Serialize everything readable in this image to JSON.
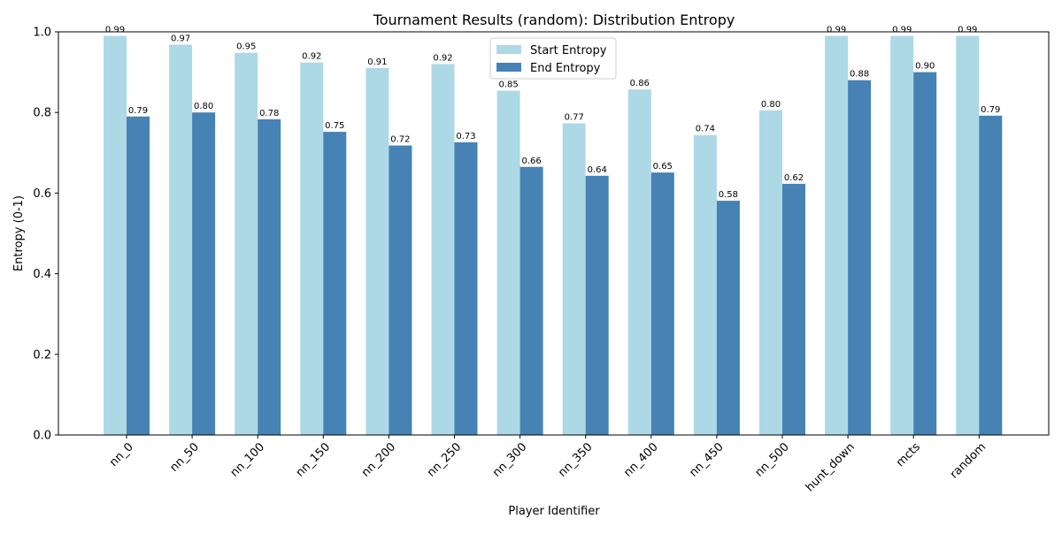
{
  "chart_data": {
    "type": "bar",
    "title": "Tournament Results (random): Distribution Entropy",
    "xlabel": "Player Identifier",
    "ylabel": "Entropy (0-1)",
    "ylim": [
      0,
      1.0
    ],
    "yticks": [
      0.0,
      0.2,
      0.4,
      0.6,
      0.8,
      1.0
    ],
    "ytick_labels": [
      "0.0",
      "0.2",
      "0.4",
      "0.6",
      "0.8",
      "1.0"
    ],
    "grid": false,
    "legend_position": "top-center",
    "categories": [
      "nn_0",
      "nn_50",
      "nn_100",
      "nn_150",
      "nn_200",
      "nn_250",
      "nn_300",
      "nn_350",
      "nn_400",
      "nn_450",
      "nn_500",
      "hunt_down",
      "mcts",
      "random"
    ],
    "series": [
      {
        "name": "Start Entropy",
        "color": "#add8e6",
        "values": [
          0.99,
          0.968,
          0.948,
          0.924,
          0.91,
          0.92,
          0.854,
          0.773,
          0.857,
          0.744,
          0.805,
          0.99,
          0.99,
          0.99
        ],
        "labels": [
          "0.99",
          "0.97",
          "0.95",
          "0.92",
          "0.91",
          "0.92",
          "0.85",
          "0.77",
          "0.86",
          "0.74",
          "0.80",
          "0.99",
          "0.99",
          "0.99"
        ]
      },
      {
        "name": "End Entropy",
        "color": "#4682b4",
        "values": [
          0.79,
          0.8,
          0.783,
          0.752,
          0.718,
          0.726,
          0.665,
          0.643,
          0.651,
          0.581,
          0.623,
          0.88,
          0.9,
          0.792
        ],
        "labels": [
          "0.79",
          "0.80",
          "0.78",
          "0.75",
          "0.72",
          "0.73",
          "0.66",
          "0.64",
          "0.65",
          "0.58",
          "0.62",
          "0.88",
          "0.90",
          "0.79"
        ]
      }
    ]
  }
}
